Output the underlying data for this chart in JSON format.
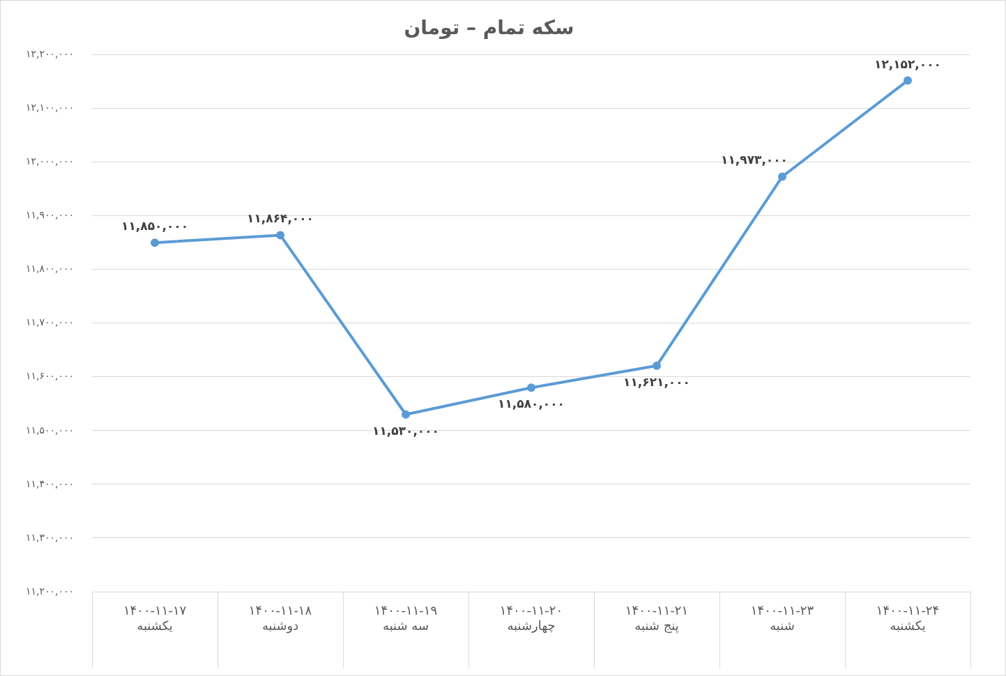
{
  "chart_data": {
    "type": "line",
    "title": "سکه تمام – تومان",
    "categories": [
      "۱۴۰۰-۱۱-۱۷\nیکشنبه",
      "۱۴۰۰-۱۱-۱۸\nدوشنبه",
      "۱۴۰۰-۱۱-۱۹\nسه شنبه",
      "۱۴۰۰-۱۱-۲۰\nچهارشنبه",
      "۱۴۰۰-۱۱-۲۱\nپنج شنبه",
      "۱۴۰۰-۱۱-۲۳\nشنبه",
      "۱۴۰۰-۱۱-۲۴\nیکشنبه"
    ],
    "series": [
      {
        "color": "#5b9bd5",
        "values": [
          11850000,
          11864000,
          11530000,
          11580000,
          11621000,
          11973000,
          12152000
        ],
        "value_labels": [
          "۱۱,۸۵۰,۰۰۰",
          "۱۱,۸۶۴,۰۰۰",
          "۱۱,۵۳۰,۰۰۰",
          "۱۱,۵۸۰,۰۰۰",
          "۱۱,۶۲۱,۰۰۰",
          "۱۱,۹۷۳,۰۰۰",
          "۱۲,۱۵۲,۰۰۰"
        ]
      }
    ],
    "ylim": [
      11200000,
      12200000
    ],
    "yticks": [
      {
        "value": 11200000,
        "label": "۱۱,۲۰۰,۰۰۰"
      },
      {
        "value": 11300000,
        "label": "۱۱,۳۰۰,۰۰۰"
      },
      {
        "value": 11400000,
        "label": "۱۱,۴۰۰,۰۰۰"
      },
      {
        "value": 11500000,
        "label": "۱۱,۵۰۰,۰۰۰"
      },
      {
        "value": 11600000,
        "label": "۱۱,۶۰۰,۰۰۰"
      },
      {
        "value": 11700000,
        "label": "۱۱,۷۰۰,۰۰۰"
      },
      {
        "value": 11800000,
        "label": "۱۱,۸۰۰,۰۰۰"
      },
      {
        "value": 11900000,
        "label": "۱۱,۹۰۰,۰۰۰"
      },
      {
        "value": 12000000,
        "label": "۱۲,۰۰۰,۰۰۰"
      },
      {
        "value": 12100000,
        "label": "۱۲,۱۰۰,۰۰۰"
      },
      {
        "value": 12200000,
        "label": "۱۲,۲۰۰,۰۰۰"
      }
    ],
    "grid": "y",
    "legend": false,
    "marker": "circle",
    "line_style": "solid"
  }
}
